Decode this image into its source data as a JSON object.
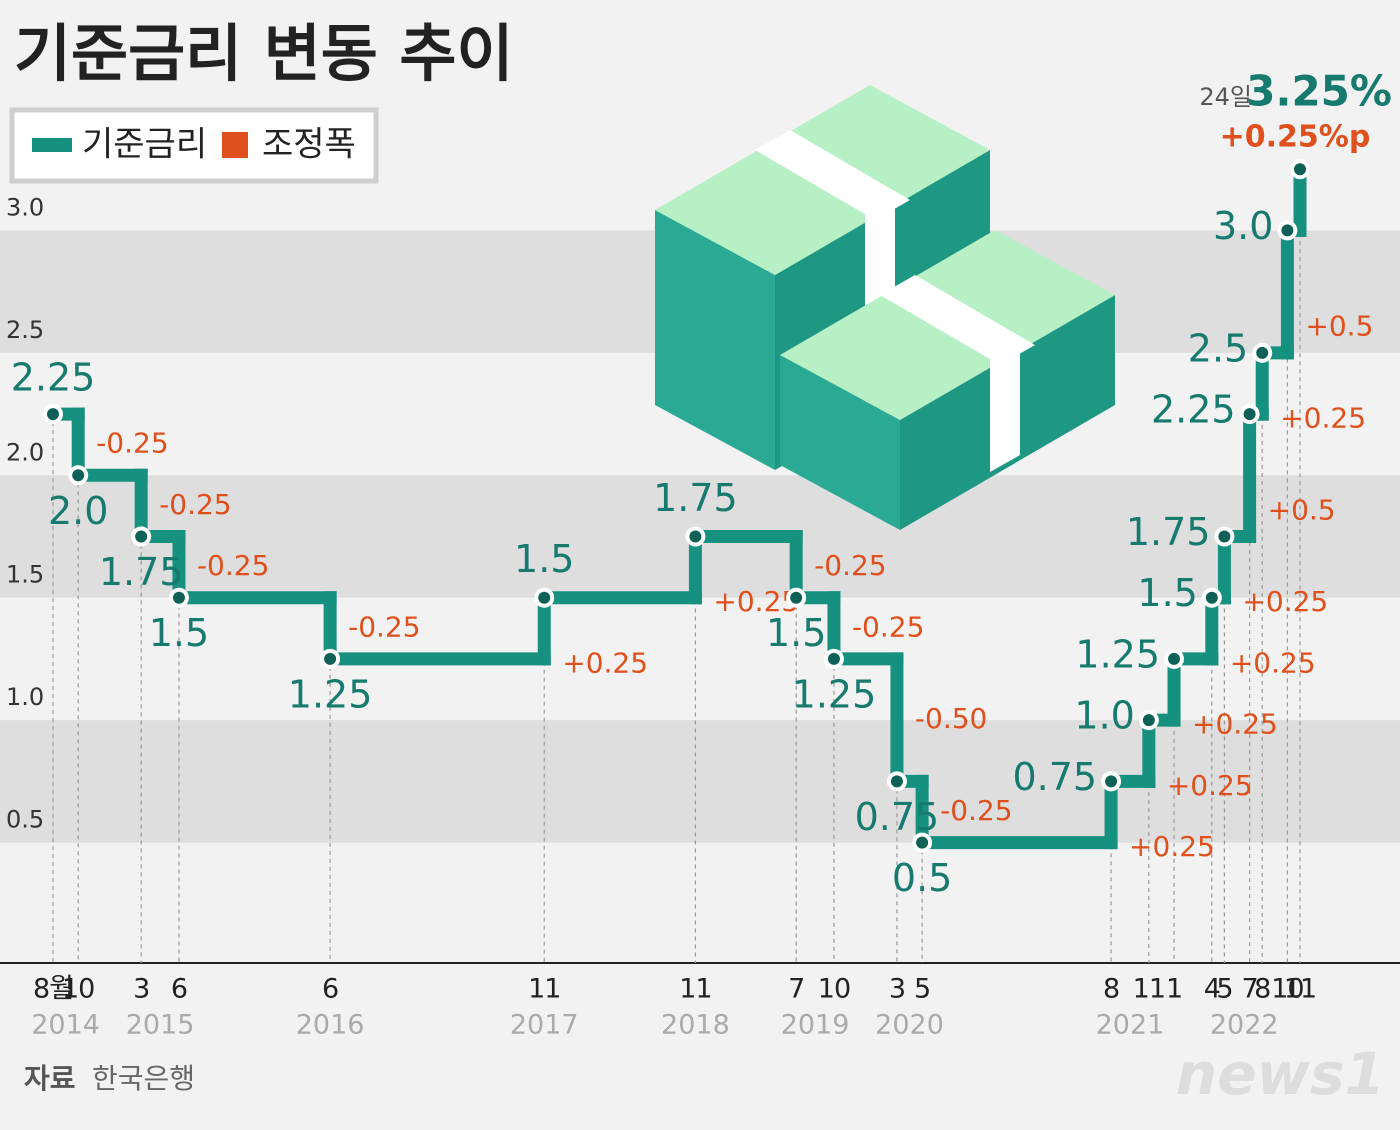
{
  "chart_data": {
    "type": "step",
    "title": "기준금리 변동 추이",
    "annotation": "24일",
    "x": [
      "2014-08",
      "2014-10",
      "2015-03",
      "2015-06",
      "2016-06",
      "2017-11",
      "2018-11",
      "2019-07",
      "2019-10",
      "2020-03",
      "2020-05",
      "2021-08",
      "2021-11",
      "2022-01",
      "2022-04",
      "2022-05",
      "2022-07",
      "2022-08",
      "2022-10",
      "2022-11"
    ],
    "xticks": [
      {
        "value": "2014-08",
        "label": "8월"
      },
      {
        "value": "2014-10",
        "label": "10"
      },
      {
        "value": "2015-03",
        "label": "3"
      },
      {
        "value": "2015-06",
        "label": "6"
      },
      {
        "value": "2016-06",
        "label": "6"
      },
      {
        "value": "2017-11",
        "label": "11"
      },
      {
        "value": "2018-11",
        "label": "11"
      },
      {
        "value": "2019-07",
        "label": "7"
      },
      {
        "value": "2019-10",
        "label": "10"
      },
      {
        "value": "2020-03",
        "label": "3"
      },
      {
        "value": "2020-05",
        "label": "5"
      },
      {
        "value": "2021-08",
        "label": "8"
      },
      {
        "value": "2021-11",
        "label": "11"
      },
      {
        "value": "2022-01",
        "label": "1"
      },
      {
        "value": "2022-04",
        "label": "4"
      },
      {
        "value": "2022-05",
        "label": "5"
      },
      {
        "value": "2022-07",
        "label": "7"
      },
      {
        "value": "2022-08",
        "label": "8"
      },
      {
        "value": "2022-10",
        "label": "10"
      },
      {
        "value": "2022-11",
        "label": "11"
      }
    ],
    "years": [
      "2014",
      "2015",
      "2016",
      "2017",
      "2018",
      "2019",
      "2020",
      "2021",
      "2022"
    ],
    "ylim": [
      0,
      3.5
    ],
    "yticks": [
      0.5,
      {
        "value": 1,
        "label": "1.0"
      },
      1.5,
      {
        "value": 2,
        "label": "2.0"
      },
      2.5,
      {
        "value": 3,
        "label": "3.0"
      }
    ],
    "grid": "bands",
    "series": [
      {
        "name": "기준금리",
        "color": "#16907f",
        "values": [
          2.25,
          2.0,
          1.75,
          1.5,
          1.25,
          1.5,
          1.75,
          1.5,
          1.25,
          0.75,
          0.5,
          0.75,
          1.0,
          1.25,
          1.5,
          1.75,
          2.25,
          2.5,
          3.0,
          3.25
        ],
        "value_labels": [
          "2.25",
          "2.0",
          "1.75",
          "1.5",
          "1.25",
          "1.5",
          "1.75",
          "1.5",
          "1.25",
          "0.75",
          "0.5",
          "0.75",
          "1.0",
          "1.25",
          "1.5",
          "1.75",
          "2.25",
          "2.5",
          "3.0",
          "3.25%"
        ]
      },
      {
        "name": "조정폭",
        "color": "#e0501c",
        "values": [
          null,
          -0.25,
          -0.25,
          -0.25,
          -0.25,
          0.25,
          0.25,
          -0.25,
          -0.25,
          -0.5,
          -0.25,
          0.25,
          0.25,
          0.25,
          0.25,
          0.25,
          0.5,
          0.25,
          0.5,
          0.25
        ],
        "value_labels": [
          null,
          "-0.25",
          "-0.25",
          "-0.25",
          "-0.25",
          "+0.25",
          "+0.25",
          "-0.25",
          "-0.25",
          "-0.50",
          "-0.25",
          "+0.25",
          "+0.25",
          "+0.25",
          "+0.25",
          "+0.25",
          "+0.5",
          "+0.25",
          "+0.5",
          "+0.25%p"
        ]
      }
    ]
  },
  "source_label": "자료",
  "source": "한국은행",
  "logo": "news1"
}
